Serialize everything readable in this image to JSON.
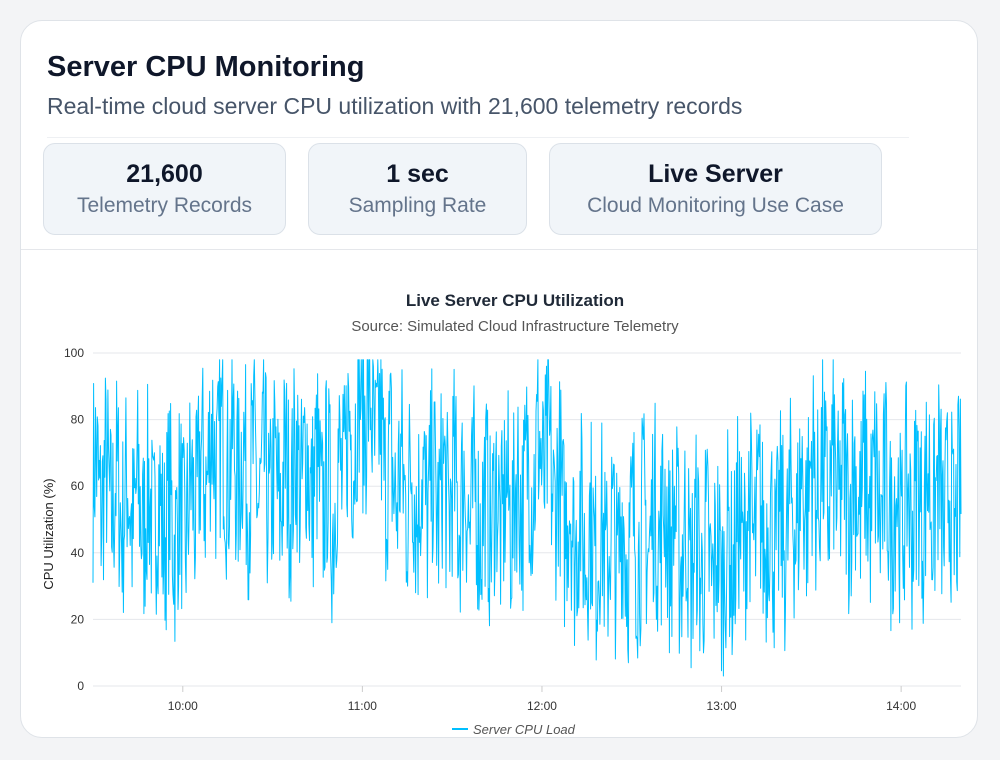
{
  "header": {
    "title": "Server CPU Monitoring",
    "subtitle": "Real-time cloud server CPU utilization with 21,600 telemetry records"
  },
  "stats": [
    {
      "value": "21,600",
      "label": "Telemetry Records"
    },
    {
      "value": "1 sec",
      "label": "Sampling Rate"
    },
    {
      "value": "Live Server",
      "label": "Cloud Monitoring Use Case"
    }
  ],
  "colors": {
    "series": "#00bfff",
    "grid": "#e5e7eb",
    "axis": "#666666"
  },
  "chart_data": {
    "type": "line",
    "title": "Live Server CPU Utilization",
    "subtitle": "Source: Simulated Cloud Infrastructure Telemetry",
    "xlabel": "",
    "ylabel": "CPU Utilization (%)",
    "ylim": [
      0,
      100
    ],
    "yticks": [
      0,
      20,
      40,
      60,
      80,
      100
    ],
    "xlim": [
      "09:30",
      "14:20"
    ],
    "xticks": [
      "10:00",
      "11:00",
      "12:00",
      "13:00",
      "14:00"
    ],
    "grid": true,
    "legend_position": "bottom-center",
    "series": [
      {
        "name": "Server CPU Load",
        "x": [
          "09:30",
          "09:40",
          "09:50",
          "10:00",
          "10:10",
          "10:20",
          "10:30",
          "10:40",
          "10:50",
          "11:00",
          "11:10",
          "11:20",
          "11:30",
          "11:40",
          "11:50",
          "12:00",
          "12:10",
          "12:20",
          "12:30",
          "12:40",
          "12:50",
          "13:00",
          "13:10",
          "13:20",
          "13:30",
          "13:40",
          "13:50",
          "14:00",
          "14:10",
          "14:20"
        ],
        "y": [
          62,
          55,
          52,
          48,
          72,
          66,
          58,
          66,
          55,
          88,
          62,
          58,
          58,
          52,
          54,
          70,
          48,
          42,
          44,
          50,
          40,
          36,
          50,
          44,
          62,
          60,
          58,
          52,
          58,
          50
        ]
      }
    ]
  }
}
